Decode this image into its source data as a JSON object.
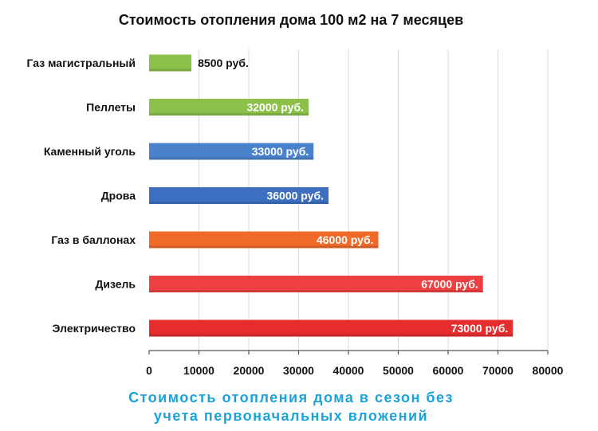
{
  "chart_data": {
    "type": "bar",
    "orientation": "horizontal",
    "title": "Стоимость отопления дома 100 м2 на 7 месяцев",
    "caption_lines": [
      "Стоимость отопления дома в сезон без",
      "учета первоначальных вложений"
    ],
    "categories": [
      "Газ магистральный",
      "Пеллеты",
      "Каменный уголь",
      "Дрова",
      "Газ в баллонах",
      "Дизель",
      "Электричество"
    ],
    "values": [
      8500,
      32000,
      33000,
      36000,
      46000,
      67000,
      73000
    ],
    "value_labels": [
      "8500 руб.",
      "32000 руб.",
      "33000 руб.",
      "36000 руб.",
      "46000 руб.",
      "67000 руб.",
      "73000 руб."
    ],
    "colors": [
      "#8cc04a",
      "#8cc04a",
      "#4a83cc",
      "#3c6fbf",
      "#f06a2a",
      "#ee4040",
      "#e52d2d"
    ],
    "value_label_colors": [
      "#111111",
      "#ffffff",
      "#ffffff",
      "#ffffff",
      "#ffffff",
      "#ffffff",
      "#ffffff"
    ],
    "xlim": [
      0,
      80000
    ],
    "xticks": [
      0,
      10000,
      20000,
      30000,
      40000,
      50000,
      60000,
      70000,
      80000
    ],
    "grid": true,
    "legend": "none"
  }
}
